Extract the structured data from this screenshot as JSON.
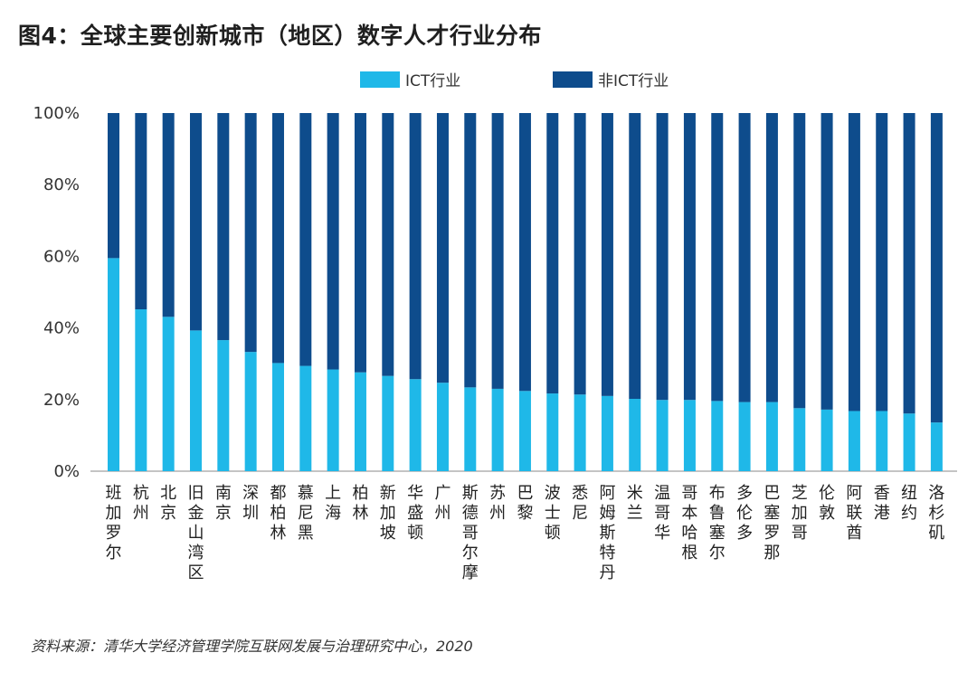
{
  "title": "图4：全球主要创新城市（地区）数字人才行业分布",
  "source": "资料来源：清华大学经济管理学院互联网发展与治理研究中心，2020",
  "chart_data": {
    "type": "bar",
    "stacked": true,
    "title": "图4：全球主要创新城市（地区）数字人才行业分布",
    "ylim": [
      0,
      100
    ],
    "yticks": [
      0,
      20,
      40,
      60,
      80,
      100
    ],
    "ytick_labels": [
      "0%",
      "20%",
      "40%",
      "60%",
      "80%",
      "100%"
    ],
    "legend_placement": "top-center",
    "categories": [
      "班加罗尔",
      "杭州",
      "北京",
      "旧金山湾区",
      "南京",
      "深圳",
      "都柏林",
      "慕尼黑",
      "上海",
      "柏林",
      "新加坡",
      "华盛顿",
      "广州",
      "斯德哥尔摩",
      "苏州",
      "巴黎",
      "波士顿",
      "悉尼",
      "阿姆斯特丹",
      "米兰",
      "温哥华",
      "哥本哈根",
      "布鲁塞尔",
      "多伦多",
      "巴塞罗那",
      "芝加哥",
      "伦敦",
      "阿联酋",
      "香港",
      "纽约",
      "洛杉矶"
    ],
    "series": [
      {
        "name": "ICT行业",
        "color": "#1fb8e8",
        "values": [
          59.5,
          45.2,
          43.1,
          39.3,
          36.6,
          33.3,
          30.2,
          29.4,
          28.4,
          27.6,
          26.6,
          25.7,
          24.7,
          23.4,
          23.0,
          22.4,
          21.7,
          21.4,
          21.0,
          20.2,
          19.9,
          19.9,
          19.6,
          19.3,
          19.3,
          17.6,
          17.2,
          16.8,
          16.8,
          16.1,
          13.6
        ]
      },
      {
        "name": "非ICT行业",
        "color": "#0e4c8c",
        "values": [
          40.5,
          54.8,
          56.9,
          60.7,
          63.4,
          66.7,
          69.8,
          70.6,
          71.6,
          72.4,
          73.4,
          74.3,
          75.3,
          76.6,
          77.0,
          77.6,
          78.3,
          78.6,
          79.0,
          79.8,
          80.1,
          80.1,
          80.4,
          80.7,
          80.7,
          82.4,
          82.8,
          83.2,
          83.2,
          83.9,
          86.4
        ]
      }
    ]
  }
}
